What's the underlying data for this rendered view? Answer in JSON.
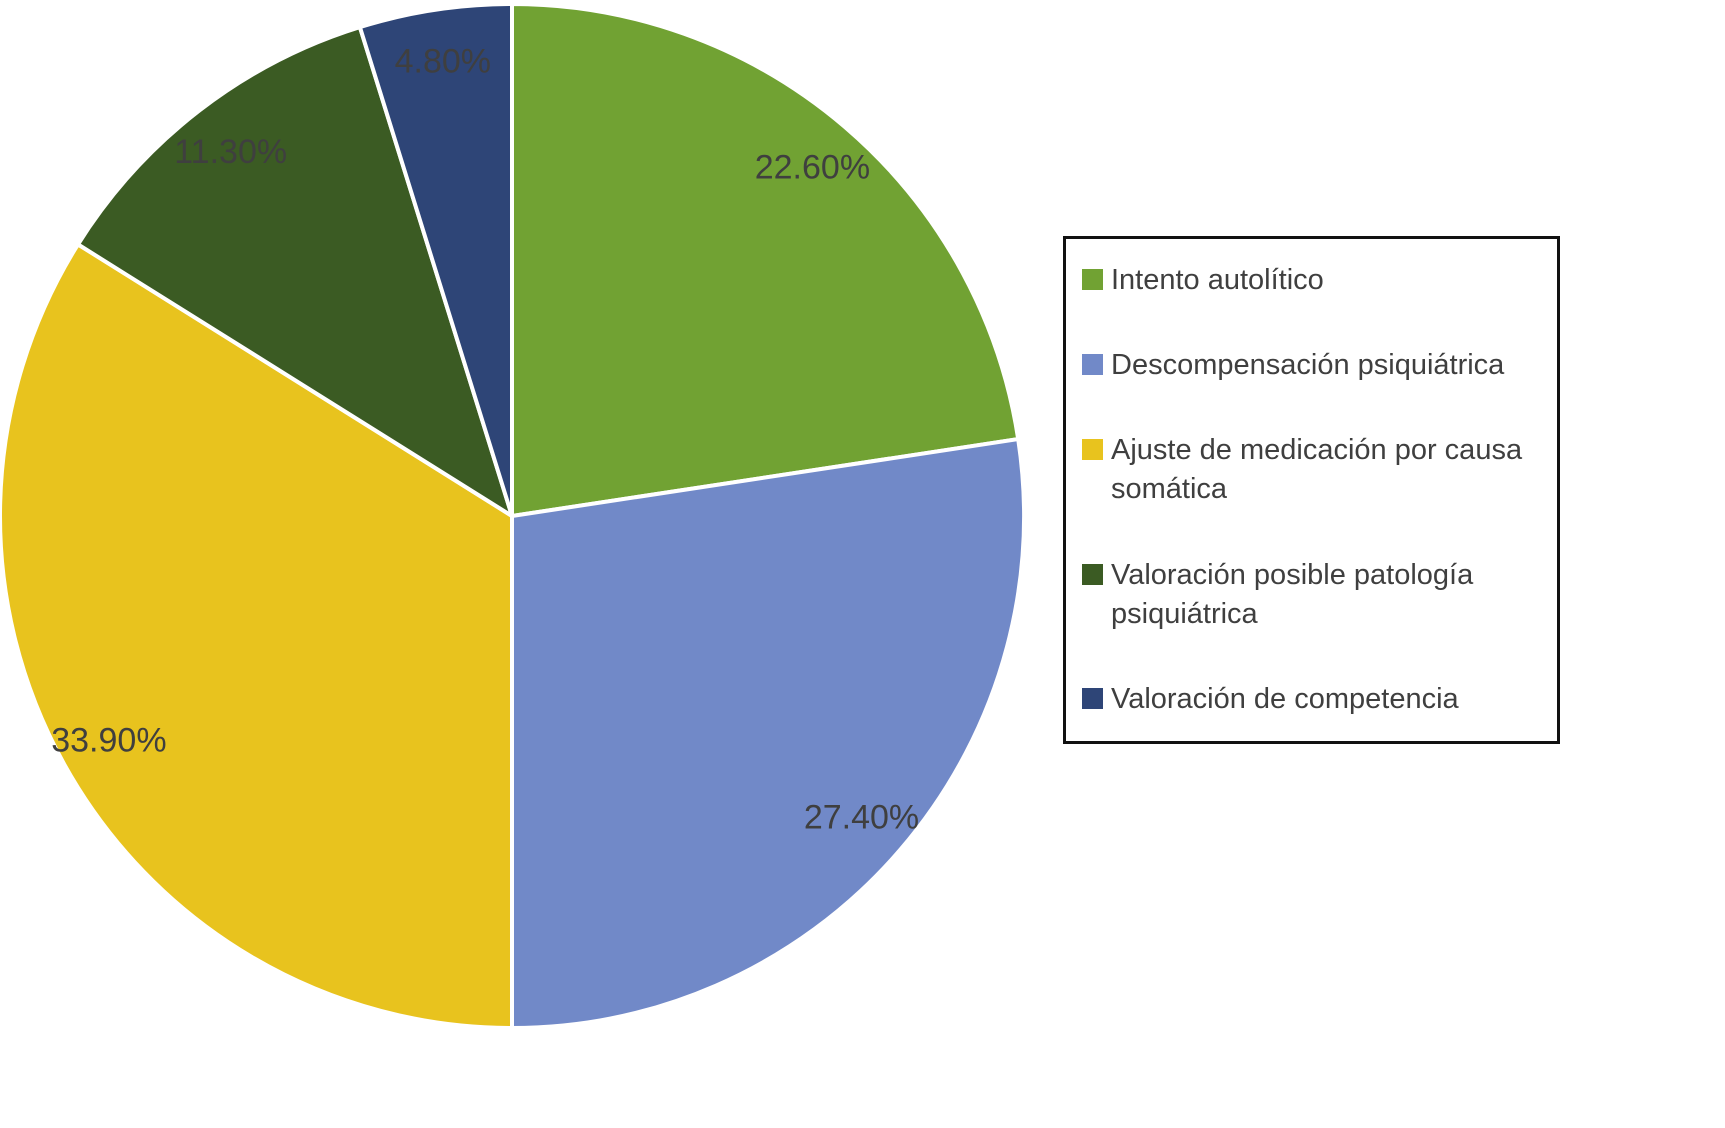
{
  "chart_data": {
    "type": "pie",
    "title": "",
    "start_angle_deg": 0,
    "direction": "clockwise",
    "legend_position": "right",
    "label_color": "#3f3f3f",
    "slice_border_color": "#ffffff",
    "slices": [
      {
        "label": "Intento autolítico",
        "value": 22.6,
        "display": "22.60%",
        "color": "#71A233"
      },
      {
        "label": "Descompensación psiquiátrica",
        "value": 27.4,
        "display": "27.40%",
        "color": "#7189C8"
      },
      {
        "label": "Ajuste de medicación por causa somática",
        "value": 33.9,
        "display": "33.90%",
        "color": "#E8C31E"
      },
      {
        "label": "Valoración posible patología psiquiátrica",
        "value": 11.3,
        "display": "11.30%",
        "color": "#3B5B23"
      },
      {
        "label": "Valoración de competencia",
        "value": 4.8,
        "display": "4.80%",
        "color": "#2E4577"
      }
    ]
  }
}
